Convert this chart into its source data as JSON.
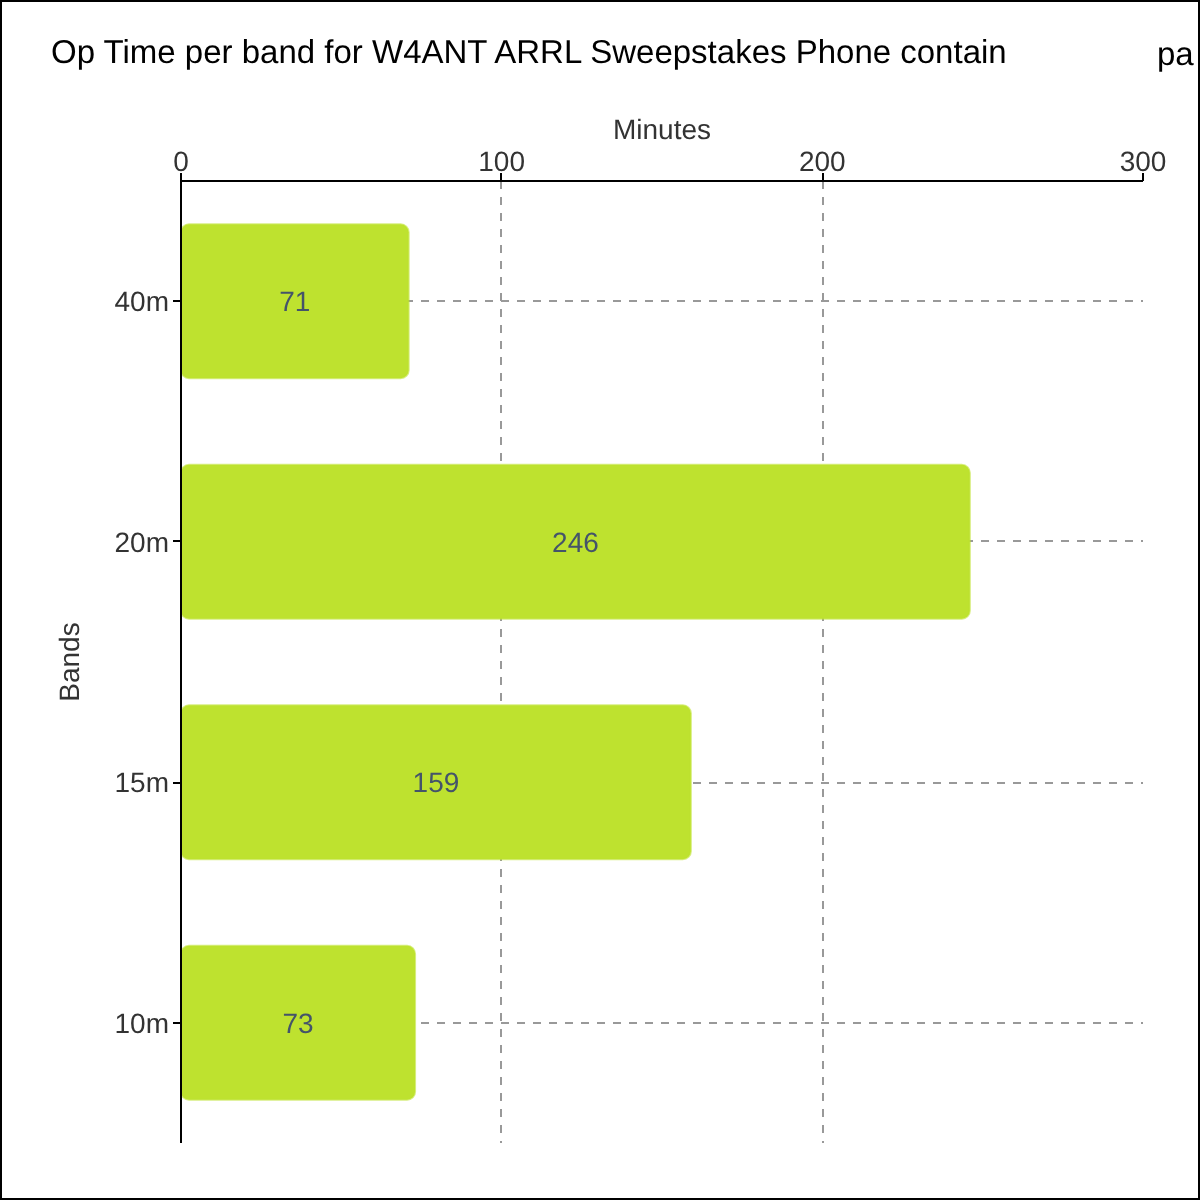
{
  "chart_data": {
    "type": "bar",
    "orientation": "horizontal",
    "title": "Op Time per band for W4ANT ARRL Sweepstakes Phone contain",
    "annotations": [
      "pa"
    ],
    "xlabel": "Minutes",
    "ylabel": "Bands",
    "categories": [
      "40m",
      "20m",
      "15m",
      "10m"
    ],
    "values": [
      71,
      246,
      159,
      73
    ],
    "color": "#bee22f",
    "xlim": [
      0,
      300
    ],
    "xticks": [
      0,
      100,
      200,
      300
    ],
    "grid": true,
    "data_labels": true
  }
}
